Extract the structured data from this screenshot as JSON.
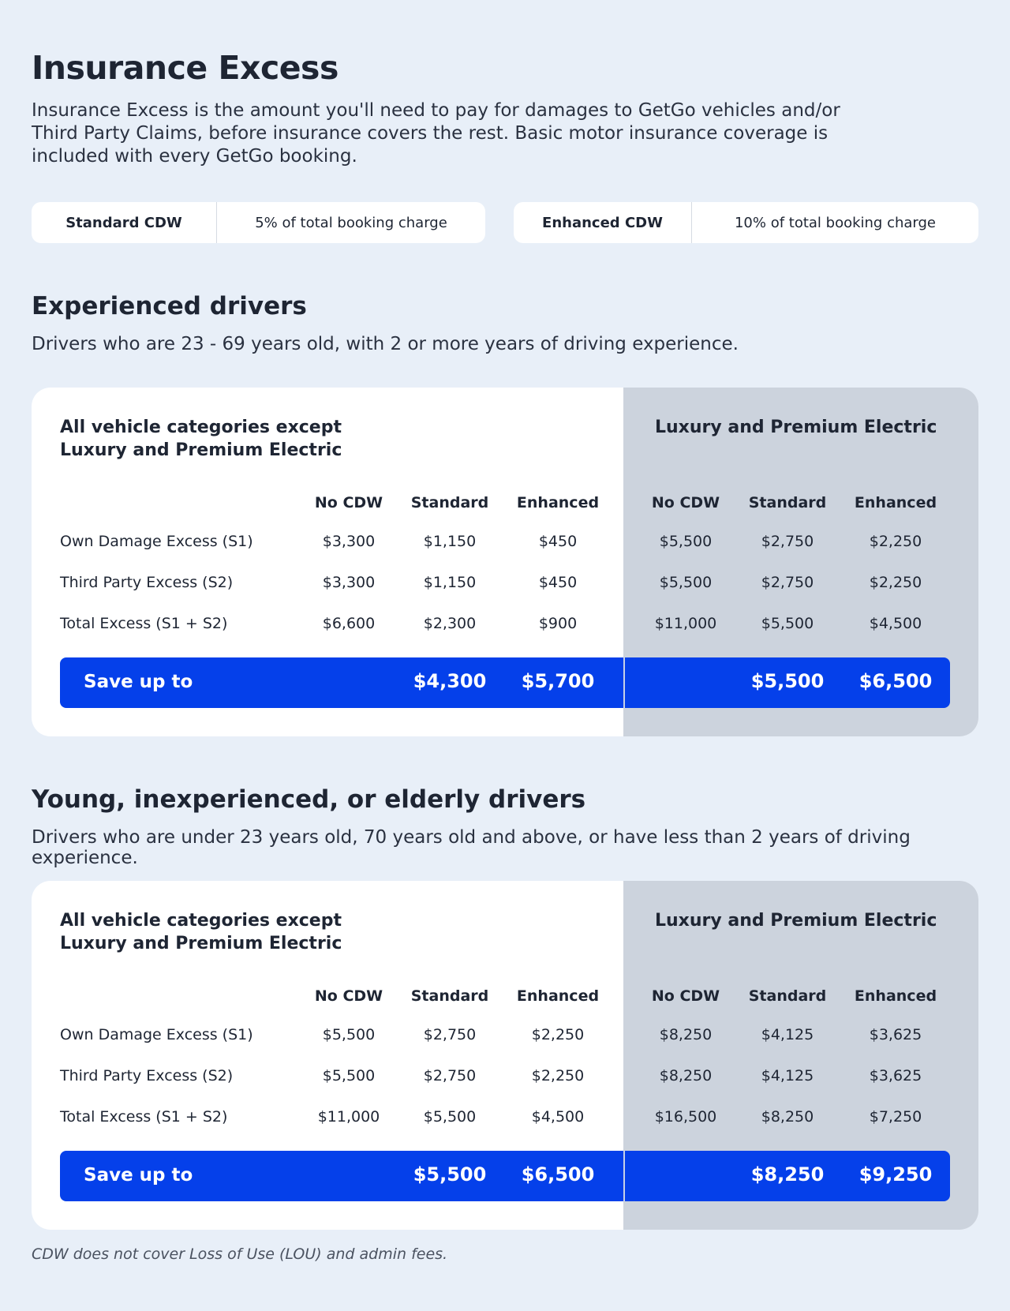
{
  "page": {
    "title": "Insurance Excess",
    "intro": "Insurance Excess is the amount you'll need to pay for damages to GetGo vehicles and/or Third Party Claims, before insurance covers the rest. Basic motor insurance coverage is included with every GetGo booking."
  },
  "cdw": {
    "standard": {
      "label": "Standard CDW",
      "value": "5% of total booking charge"
    },
    "enhanced": {
      "label": "Enhanced CDW",
      "value": "10% of total booking charge"
    }
  },
  "sections": [
    {
      "title": "Experienced drivers",
      "description": "Drivers who are 23 - 69 years old, with 2 or more years of driving experience.",
      "table": {
        "left_caption_1": "All vehicle categories except",
        "left_caption_2": "Luxury and Premium Electric",
        "right_caption": "Luxury and Premium Electric",
        "headers": [
          "No CDW",
          "Standard",
          "Enhanced",
          "No CDW",
          "Standard",
          "Enhanced"
        ],
        "rows": [
          {
            "label": "Own Damage Excess (S1)",
            "values": [
              "$3,300",
              "$1,150",
              "$450",
              "$5,500",
              "$2,750",
              "$2,250"
            ]
          },
          {
            "label": "Third Party Excess (S2)",
            "values": [
              "$3,300",
              "$1,150",
              "$450",
              "$5,500",
              "$2,750",
              "$2,250"
            ]
          },
          {
            "label": "Total Excess (S1 + S2)",
            "values": [
              "$6,600",
              "$2,300",
              "$900",
              "$11,000",
              "$5,500",
              "$4,500"
            ]
          }
        ],
        "save": {
          "label": "Save up to",
          "values": [
            "$4,300",
            "$5,700",
            "$5,500",
            "$6,500"
          ]
        }
      }
    },
    {
      "title": "Young, inexperienced, or elderly drivers",
      "description": "Drivers who are under 23 years old, 70 years old and above, or have less than 2 years of driving experience.",
      "table": {
        "left_caption_1": "All vehicle categories except",
        "left_caption_2": "Luxury and Premium Electric",
        "right_caption": "Luxury and Premium Electric",
        "headers": [
          "No CDW",
          "Standard",
          "Enhanced",
          "No CDW",
          "Standard",
          "Enhanced"
        ],
        "rows": [
          {
            "label": "Own Damage Excess (S1)",
            "values": [
              "$5,500",
              "$2,750",
              "$2,250",
              "$8,250",
              "$4,125",
              "$3,625"
            ]
          },
          {
            "label": "Third Party Excess (S2)",
            "values": [
              "$5,500",
              "$2,750",
              "$2,250",
              "$8,250",
              "$4,125",
              "$3,625"
            ]
          },
          {
            "label": "Total Excess (S1 + S2)",
            "values": [
              "$11,000",
              "$5,500",
              "$4,500",
              "$16,500",
              "$8,250",
              "$7,250"
            ]
          }
        ],
        "save": {
          "label": "Save up to",
          "values": [
            "$5,500",
            "$6,500",
            "$8,250",
            "$9,250"
          ]
        }
      }
    }
  ],
  "footnote": "CDW does not cover Loss of Use (LOU) and admin fees."
}
